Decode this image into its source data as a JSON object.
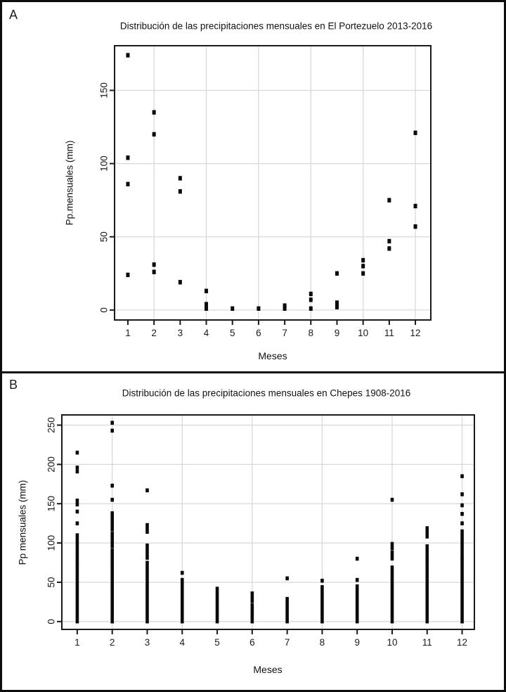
{
  "page": {
    "background": "#ffffff",
    "border_color": "#0d0d0d",
    "grid_color": "#d8d8d8",
    "point_color": "#0a0a0a"
  },
  "panels": [
    {
      "label": "A"
    },
    {
      "label": "B"
    }
  ],
  "chart_data": [
    {
      "panel": "A",
      "type": "scatter",
      "title": "Distribución de las precipitaciones mensuales en El Portezuelo 2013-2016",
      "xlabel": "Meses",
      "ylabel": "Pp.mensuales (mm)",
      "x_tick_labels": [
        "1",
        "2",
        "3",
        "4",
        "5",
        "6",
        "7",
        "8",
        "9",
        "10",
        "11",
        "12"
      ],
      "y_ticks": [
        0,
        50,
        100,
        150
      ],
      "xlim": [
        0.49,
        12.59
      ],
      "ylim": [
        -6.8,
        180.5
      ],
      "grid": true,
      "grid_vertical_months": [
        2,
        4,
        6,
        8,
        10,
        12
      ],
      "series": [
        {
          "month": 1,
          "values": [
            174,
            104,
            86,
            24
          ]
        },
        {
          "month": 2,
          "values": [
            135,
            120,
            31,
            26
          ]
        },
        {
          "month": 3,
          "values": [
            90,
            81,
            19
          ]
        },
        {
          "month": 4,
          "values": [
            13,
            4,
            1
          ]
        },
        {
          "month": 5,
          "values": [
            1
          ]
        },
        {
          "month": 6,
          "values": [
            1
          ]
        },
        {
          "month": 7,
          "values": [
            3,
            1
          ]
        },
        {
          "month": 8,
          "values": [
            11,
            7,
            1
          ]
        },
        {
          "month": 9,
          "values": [
            25,
            5,
            2
          ]
        },
        {
          "month": 10,
          "values": [
            34,
            30,
            25
          ]
        },
        {
          "month": 11,
          "values": [
            75,
            47,
            42
          ]
        },
        {
          "month": 12,
          "values": [
            121,
            71,
            57
          ]
        }
      ]
    },
    {
      "panel": "B",
      "type": "strip",
      "title": "Distribución de las precipitaciones mensuales en Chepes 1908-2016",
      "xlabel": "Meses",
      "ylabel": "Pp mensuales (mm)",
      "x_tick_labels": [
        "1",
        "2",
        "3",
        "4",
        "5",
        "6",
        "7",
        "8",
        "9",
        "10",
        "11",
        "12"
      ],
      "y_ticks": [
        0,
        50,
        100,
        150,
        200,
        250
      ],
      "xlim": [
        0.56,
        12.35
      ],
      "ylim": [
        -10,
        263
      ],
      "grid": true,
      "grid_vertical_months": [
        2,
        4,
        6,
        8,
        10,
        12
      ],
      "months": [
        {
          "month": 1,
          "segments": [
            [
              0,
              72
            ],
            [
              76,
              110
            ]
          ],
          "outliers": [
            125,
            140,
            149,
            154,
            191,
            196,
            215
          ]
        },
        {
          "month": 2,
          "segments": [
            [
              0,
              79
            ],
            [
              83,
              91
            ],
            [
              96,
              112
            ],
            [
              117,
              138
            ]
          ],
          "outliers": [
            155,
            173,
            243,
            253
          ]
        },
        {
          "month": 3,
          "segments": [
            [
              0,
              75
            ],
            [
              81,
              97
            ],
            [
              114,
              123
            ]
          ],
          "outliers": [
            167
          ]
        },
        {
          "month": 4,
          "segments": [
            [
              0,
              49
            ]
          ],
          "outliers": [
            53,
            62
          ]
        },
        {
          "month": 5,
          "segments": [
            [
              0,
              29
            ],
            [
              33,
              42
            ]
          ],
          "outliers": []
        },
        {
          "month": 6,
          "segments": [
            [
              0,
              12
            ],
            [
              15,
              21
            ],
            [
              26,
              36
            ]
          ],
          "outliers": []
        },
        {
          "month": 7,
          "segments": [
            [
              0,
              29
            ]
          ],
          "outliers": [
            55
          ]
        },
        {
          "month": 8,
          "segments": [
            [
              0,
              44
            ]
          ],
          "outliers": [
            52
          ]
        },
        {
          "month": 9,
          "segments": [
            [
              0,
              45
            ]
          ],
          "outliers": [
            53,
            80
          ]
        },
        {
          "month": 10,
          "segments": [
            [
              0,
              52
            ],
            [
              56,
              69
            ],
            [
              80,
              88
            ],
            [
              93,
              99
            ]
          ],
          "outliers": [
            155
          ]
        },
        {
          "month": 11,
          "segments": [
            [
              0,
              77
            ],
            [
              79,
              96
            ],
            [
              108,
              119
            ]
          ],
          "outliers": []
        },
        {
          "month": 12,
          "segments": [
            [
              0,
              79
            ],
            [
              82,
              115
            ]
          ],
          "outliers": [
            125,
            137,
            148,
            162,
            185
          ]
        }
      ]
    }
  ]
}
